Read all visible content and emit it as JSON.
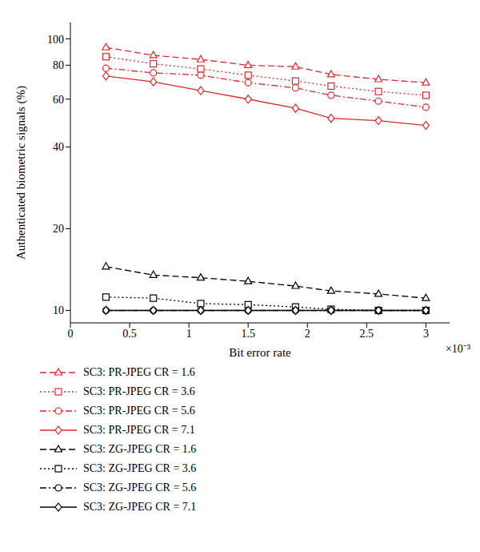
{
  "chart_data": {
    "type": "line",
    "x_label": "Bit error rate",
    "y_label": "Authenticated biometric signals (%)",
    "annotations": [
      "×10⁻³"
    ],
    "x": [
      0.3,
      0.7,
      1.1,
      1.5,
      1.9,
      2.2,
      2.6,
      3.0
    ],
    "xlim": [
      0,
      3.2
    ],
    "xticks": [
      0,
      0.5,
      1,
      1.5,
      2,
      2.5,
      3
    ],
    "ylim": [
      9,
      115
    ],
    "yticks": [
      10,
      20,
      40,
      60,
      80,
      100
    ],
    "log": "y",
    "grid": false,
    "legend": "bottom",
    "series": [
      {
        "name": "SC3: PR-JPEG CR = 1.6",
        "color": "#e02828",
        "marker": "triangle",
        "line_style": "dashed",
        "values": [
          93,
          87,
          84,
          80,
          79,
          74,
          71,
          69
        ]
      },
      {
        "name": "SC3: PR-JPEG CR = 3.6",
        "color": "#e02828",
        "marker": "square",
        "line_style": "dotted",
        "values": [
          86,
          81,
          77.5,
          73.5,
          70,
          67,
          64,
          62
        ]
      },
      {
        "name": "SC3: PR-JPEG CR = 5.6",
        "color": "#e02828",
        "marker": "circle",
        "line_style": "dashdot",
        "values": [
          78,
          75,
          73.5,
          69,
          66,
          62,
          59,
          56
        ]
      },
      {
        "name": "SC3: PR-JPEG CR = 7.1",
        "color": "#e02828",
        "marker": "diamond",
        "line_style": "solid",
        "values": [
          73,
          69.5,
          64.5,
          60,
          55.5,
          51,
          50,
          48
        ]
      },
      {
        "name": "SC3: ZG-JPEG CR = 1.6",
        "color": "#000000",
        "marker": "triangle",
        "line_style": "dashed",
        "values": [
          14.5,
          13.5,
          13.2,
          12.8,
          12.3,
          11.8,
          11.5,
          11.1
        ]
      },
      {
        "name": "SC3: ZG-JPEG CR = 3.6",
        "color": "#000000",
        "marker": "square",
        "line_style": "dotted",
        "values": [
          11.2,
          11.1,
          10.6,
          10.5,
          10.3,
          10.1,
          10,
          10
        ]
      },
      {
        "name": "SC3: ZG-JPEG CR = 5.6",
        "color": "#000000",
        "marker": "circle",
        "line_style": "dashdot",
        "values": [
          10,
          10,
          10,
          10,
          10,
          10,
          10,
          10
        ]
      },
      {
        "name": "SC3: ZG-JPEG CR = 7.1",
        "color": "#000000",
        "marker": "diamond",
        "line_style": "solid",
        "values": [
          10,
          10,
          10,
          10,
          10,
          10,
          10,
          10
        ]
      }
    ]
  }
}
